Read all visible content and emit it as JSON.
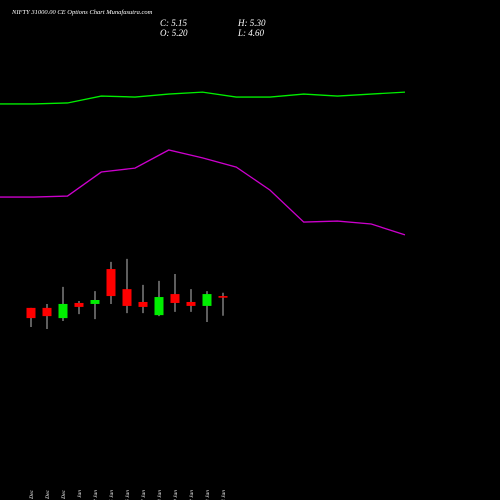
{
  "chart_data": {
    "type": "candlestick",
    "title": "NIFTY 31000.00 CE Options Chart Munafasutra.com",
    "info": [
      "C: 5.15",
      "H: 5.30",
      "O: 5.20",
      "L: 4.60"
    ],
    "categories": [
      "29 Dec",
      "30 Dec",
      "31 Dec",
      "01 Jan",
      "02 Jan",
      "05 Jan",
      "06 Jan",
      "07 Jan",
      "08 Jan",
      "09 Jan",
      "12 Jan",
      "13 Jan",
      "14 Jan"
    ],
    "open": [
      4.84,
      4.84,
      4.53,
      4.99,
      4.96,
      6.02,
      5.41,
      5.02,
      4.62,
      5.26,
      5.02,
      4.9,
      5.2
    ],
    "high": [
      4.84,
      4.96,
      5.48,
      5.05,
      5.35,
      6.24,
      6.33,
      5.54,
      5.66,
      5.87,
      5.41,
      5.35,
      5.3
    ],
    "low": [
      4.26,
      4.2,
      4.44,
      4.65,
      4.5,
      4.96,
      4.68,
      4.68,
      4.59,
      4.72,
      4.72,
      4.41,
      4.6
    ],
    "close": [
      4.53,
      4.59,
      4.96,
      4.87,
      5.08,
      5.2,
      4.9,
      4.87,
      5.17,
      4.99,
      4.9,
      5.26,
      5.15
    ],
    "up_color": "#00ee00",
    "down_color": "#ff0000",
    "series": [
      {
        "color": "#00ee00",
        "values": [
          11.04,
          11.04,
          11.07,
          11.28,
          11.25,
          11.34,
          11.4,
          11.25,
          11.25,
          11.34,
          11.28,
          11.34,
          11.4
        ]
      },
      {
        "color": "#cc00cc",
        "values": [
          8.21,
          8.21,
          8.24,
          8.97,
          9.09,
          9.64,
          9.4,
          9.12,
          8.42,
          7.45,
          7.48,
          7.39,
          7.06
        ]
      }
    ],
    "ylim": [
      -1,
      14.2
    ]
  }
}
